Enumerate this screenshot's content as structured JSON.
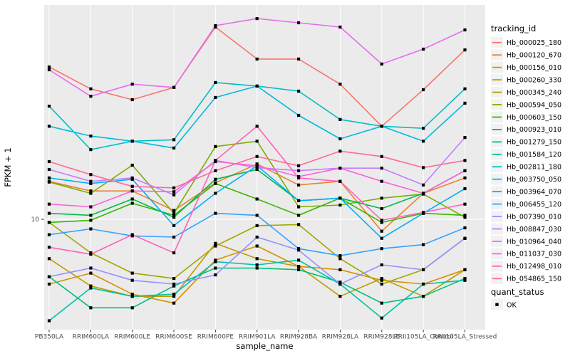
{
  "chart_data": {
    "type": "line",
    "title": "",
    "xlabel": "sample_name",
    "ylabel": "FPKM + 1",
    "legend_title": "tracking_id",
    "y_axis": {
      "scale": "log10",
      "tick_labels": [
        "10"
      ],
      "tick_values": [
        10
      ]
    },
    "grid": true,
    "legend_position": "right",
    "panel_bg": "#EBEBEB",
    "grid_color": "#FFFFFF",
    "point_color": "#000000",
    "axis_text_color": "#4D4D4D",
    "tick_color": "#333333",
    "legend_key_bg": "#F2F2F2",
    "categories": [
      "PB350LA",
      "RRIM600LA",
      "RRIM600LE",
      "RRIM600SE",
      "RRIM600PE",
      "RRIM901LA",
      "RRIM928BA",
      "RRIM928LA",
      "RRIM928LE",
      "RRII105LA_Control",
      "RRII105LA_Stressed"
    ],
    "series": [
      {
        "name": "Hb_000025_180",
        "color": "#F8766D",
        "values": [
          44.5,
          35.9,
          32.3,
          36.4,
          65.8,
          48.1,
          48.1,
          37.6,
          24.9,
          35.6,
          52.6
        ]
      },
      {
        "name": "Hb_000120_670",
        "color": "#EA8331",
        "values": [
          14.5,
          13.2,
          13.2,
          10.9,
          14.3,
          17.2,
          14.0,
          14.5,
          8.9,
          12.9,
          15.0
        ]
      },
      {
        "name": "Hb_000156_010",
        "color": "#D89000",
        "values": [
          5.3,
          5.9,
          4.8,
          4.4,
          6.7,
          7.7,
          6.3,
          6.1,
          5.5,
          5.3,
          6.1
        ]
      },
      {
        "name": "Hb_000260_330",
        "color": "#C09B00",
        "values": [
          6.8,
          5.2,
          4.7,
          4.7,
          7.9,
          6.8,
          6.3,
          4.7,
          5.6,
          4.7,
          6.1
        ]
      },
      {
        "name": "Hb_000345_240",
        "color": "#A3A500",
        "values": [
          9.7,
          7.2,
          5.9,
          5.6,
          7.7,
          9.4,
          9.5,
          6.8,
          5.3,
          6.1,
          8.3
        ]
      },
      {
        "name": "Hb_000594_050",
        "color": "#7CAE00",
        "values": [
          14.4,
          12.9,
          17.0,
          10.6,
          20.4,
          21.5,
          11.3,
          11.5,
          12.3,
          12.8,
          10.2
        ]
      },
      {
        "name": "Hb_000603_150",
        "color": "#39B600",
        "values": [
          9.7,
          9.9,
          11.7,
          10.4,
          14.2,
          12.2,
          10.4,
          12.3,
          9.7,
          10.6,
          10.4
        ]
      },
      {
        "name": "Hb_000923_010",
        "color": "#00BB4E",
        "values": [
          10.6,
          10.4,
          12.2,
          10.2,
          14.8,
          16.3,
          12.0,
          12.3,
          11.1,
          12.9,
          16.1
        ]
      },
      {
        "name": "Hb_001279_150",
        "color": "#00BF7D",
        "values": [
          5.7,
          4.2,
          4.2,
          5.2,
          6.2,
          6.2,
          6.1,
          5.4,
          4.4,
          4.7,
          5.6
        ]
      },
      {
        "name": "Hb_001584_120",
        "color": "#00C1A3",
        "values": [
          3.7,
          5.1,
          4.7,
          4.8,
          6.6,
          6.4,
          6.7,
          5.3,
          3.8,
          5.3,
          5.5
        ]
      },
      {
        "name": "Hb_002811_180",
        "color": "#00BFC4",
        "values": [
          30.3,
          19.8,
          21.5,
          21.8,
          38.2,
          36.9,
          35.1,
          26.6,
          24.9,
          24.4,
          35.9
        ]
      },
      {
        "name": "Hb_003750_050",
        "color": "#00BAE0",
        "values": [
          24.9,
          22.6,
          21.5,
          20.1,
          33.0,
          36.9,
          27.7,
          22.0,
          24.9,
          21.5,
          31.2
        ]
      },
      {
        "name": "Hb_003964_070",
        "color": "#00B0F6",
        "values": [
          15.0,
          14.2,
          14.8,
          9.4,
          12.9,
          16.9,
          12.0,
          12.3,
          8.3,
          10.6,
          13.5
        ]
      },
      {
        "name": "Hb_006455_120",
        "color": "#35A2FF",
        "values": [
          8.6,
          9.1,
          8.5,
          8.4,
          10.6,
          10.4,
          7.5,
          7.0,
          7.5,
          7.8,
          9.2
        ]
      },
      {
        "name": "Hb_007390_010",
        "color": "#9590FF",
        "values": [
          5.7,
          6.2,
          5.5,
          5.3,
          5.8,
          8.4,
          7.4,
          5.3,
          6.4,
          6.1,
          8.3
        ]
      },
      {
        "name": "Hb_008847_030",
        "color": "#C77CFF",
        "values": [
          16.3,
          14.5,
          15.0,
          12.7,
          17.8,
          16.6,
          16.1,
          16.5,
          16.5,
          14.0,
          22.3
        ]
      },
      {
        "name": "Hb_010964_040",
        "color": "#E76BF3",
        "values": [
          43.3,
          33.4,
          37.6,
          36.4,
          66.7,
          71.5,
          68.6,
          65.8,
          45.8,
          53.0,
          64.0
        ]
      },
      {
        "name": "Hb_011037_030",
        "color": "#FA62DB",
        "values": [
          11.6,
          11.3,
          13.2,
          13.1,
          17.6,
          16.9,
          15.2,
          16.5,
          14.5,
          12.9,
          16.1
        ]
      },
      {
        "name": "Hb_012498_010",
        "color": "#FF62BC",
        "values": [
          7.6,
          7.1,
          8.6,
          7.2,
          17.8,
          24.9,
          15.0,
          14.5,
          9.9,
          10.7,
          11.6
        ]
      },
      {
        "name": "Hb_054865_150",
        "color": "#FF6A98",
        "values": [
          17.6,
          15.5,
          13.8,
          13.6,
          16.1,
          18.5,
          16.9,
          19.5,
          18.5,
          16.6,
          17.8
        ]
      }
    ],
    "quant_legend": {
      "title": "quant_status",
      "items": [
        {
          "label": "OK",
          "marker": "black-square"
        }
      ]
    }
  }
}
